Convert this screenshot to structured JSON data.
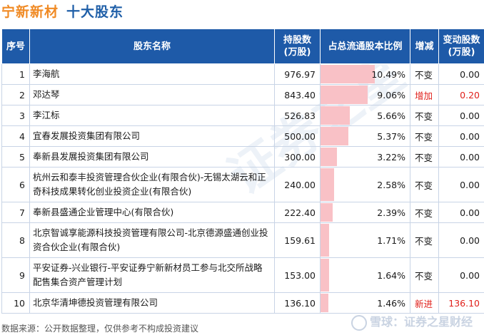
{
  "header": {
    "company": "宁新新材",
    "section": "十大股东"
  },
  "table": {
    "columns": [
      "序号",
      "股东名称",
      "持股数\n(万股)",
      "占总流通股本比例",
      "增减",
      "变动股数\n(万股)"
    ],
    "rows": [
      {
        "idx": "1",
        "name": "李海航",
        "shares": "976.97",
        "ratio_pct": 10.49,
        "ratio": "10.49%",
        "change": "不变",
        "delta": "0.00",
        "up": false
      },
      {
        "idx": "2",
        "name": "邓达琴",
        "shares": "843.40",
        "ratio_pct": 9.06,
        "ratio": "9.06%",
        "change": "增加",
        "delta": "0.20",
        "up": true
      },
      {
        "idx": "3",
        "name": "李江标",
        "shares": "526.83",
        "ratio_pct": 5.66,
        "ratio": "5.66%",
        "change": "不变",
        "delta": "0.00",
        "up": false
      },
      {
        "idx": "4",
        "name": "宜春发展投资集团有限公司",
        "shares": "500.00",
        "ratio_pct": 5.37,
        "ratio": "5.37%",
        "change": "不变",
        "delta": "0.00",
        "up": false
      },
      {
        "idx": "5",
        "name": "奉新县发展投资集团有限公司",
        "shares": "300.00",
        "ratio_pct": 3.22,
        "ratio": "3.22%",
        "change": "不变",
        "delta": "0.00",
        "up": false
      },
      {
        "idx": "6",
        "name": "杭州云和泰丰投资管理合伙企业(有限合伙)-无锡太湖云和正奇科技成果转化创业投资企业(有限合伙)",
        "shares": "240.00",
        "ratio_pct": 2.58,
        "ratio": "2.58%",
        "change": "不变",
        "delta": "0.00",
        "up": false
      },
      {
        "idx": "7",
        "name": "奉新县盛通企业管理中心(有限合伙)",
        "shares": "222.40",
        "ratio_pct": 2.39,
        "ratio": "2.39%",
        "change": "不变",
        "delta": "0.00",
        "up": false
      },
      {
        "idx": "8",
        "name": "北京智诚享能源科技投资管理有限公司-北京德源盛通创业投资合伙企业(有限合伙)",
        "shares": "159.61",
        "ratio_pct": 1.71,
        "ratio": "1.71%",
        "change": "不变",
        "delta": "0.00",
        "up": false
      },
      {
        "idx": "9",
        "name": "平安证券-兴业银行-平安证券宁新新材员工参与北交所战略配售集合资产管理计划",
        "shares": "153.00",
        "ratio_pct": 1.64,
        "ratio": "1.64%",
        "change": "不变",
        "delta": "0.00",
        "up": false
      },
      {
        "idx": "10",
        "name": "北京华清坤德投资管理有限公司",
        "shares": "136.10",
        "ratio_pct": 1.46,
        "ratio": "1.46%",
        "change": "新进",
        "delta": "136.10",
        "up": true
      }
    ]
  },
  "footer": {
    "source": "数据来源：公开数据整理，仅供参考不构成投资建议"
  },
  "brand": {
    "text": "雪球：证券之星财经"
  },
  "colors": {
    "header_bg": "#1e5aa8",
    "bar": "#f9c1c6",
    "up": "#e0201b",
    "title_orange": "#f08a24",
    "title_blue": "#1f5fa8"
  }
}
